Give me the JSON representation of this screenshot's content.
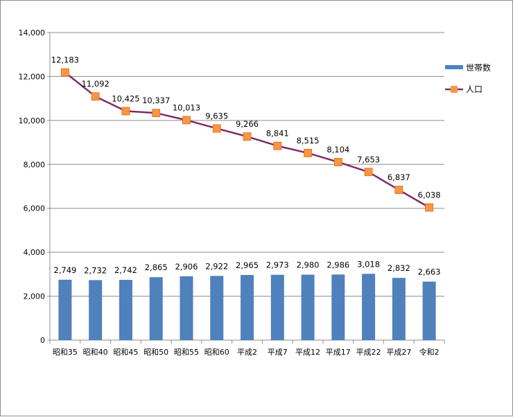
{
  "chart_data": {
    "type": "bar",
    "categories": [
      "昭和35",
      "昭和40",
      "昭和45",
      "昭和50",
      "昭和55",
      "昭和60",
      "平成2",
      "平成7",
      "平成12",
      "平成17",
      "平成22",
      "平成27",
      "令和2"
    ],
    "series": [
      {
        "name": "世帯数",
        "type": "bar",
        "color": "#4F81BD",
        "values": [
          2749,
          2732,
          2742,
          2865,
          2906,
          2922,
          2965,
          2973,
          2980,
          2986,
          3018,
          2832,
          2663
        ],
        "labels": [
          "2,749",
          "2,732",
          "2,742",
          "2,865",
          "2,906",
          "2,922",
          "2,965",
          "2,973",
          "2,980",
          "2,986",
          "3,018",
          "2,832",
          "2,663"
        ]
      },
      {
        "name": "人口",
        "type": "line",
        "color": "#7B2C6B",
        "marker_color": "#F79646",
        "values": [
          12183,
          11092,
          10425,
          10337,
          10013,
          9635,
          9266,
          8841,
          8515,
          8104,
          7653,
          6837,
          6038
        ],
        "labels": [
          "12,183",
          "11,092",
          "10,425",
          "10,337",
          "10,013",
          "9,635",
          "9,266",
          "8,841",
          "8,515",
          "8,104",
          "7,653",
          "6,837",
          "6,038"
        ]
      }
    ],
    "ylim": [
      0,
      14000
    ],
    "yticks": [
      0,
      2000,
      4000,
      6000,
      8000,
      10000,
      12000,
      14000
    ],
    "ytick_labels": [
      "0",
      "2,000",
      "4,000",
      "6,000",
      "8,000",
      "10,000",
      "12,000",
      "14,000"
    ],
    "grid": true,
    "legend": "right"
  }
}
